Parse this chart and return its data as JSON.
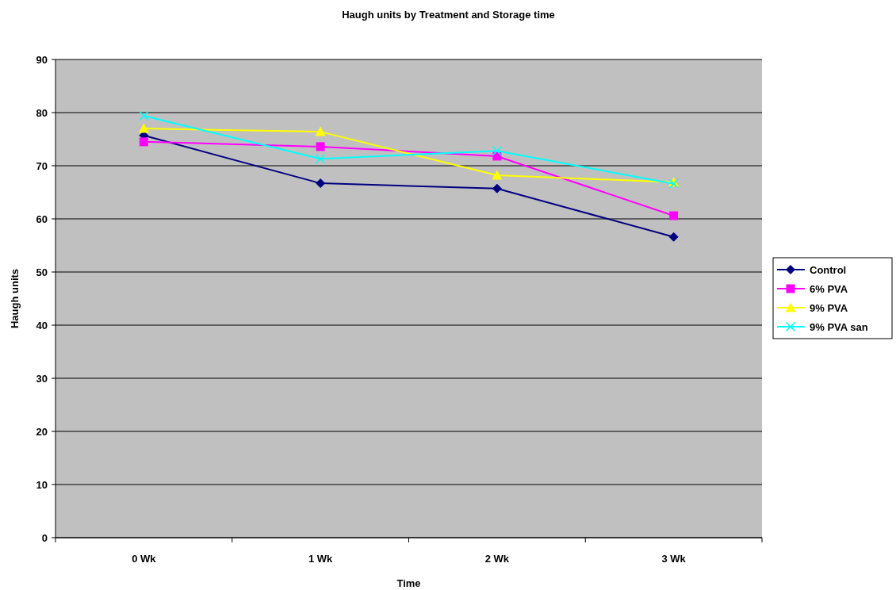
{
  "chart_data": {
    "type": "line",
    "title": "Haugh units by Treatment and Storage time",
    "xlabel": "Time",
    "ylabel": "Haugh units",
    "categories": [
      "0 Wk",
      "1 Wk",
      "2 Wk",
      "3 Wk"
    ],
    "series": [
      {
        "name": "Control",
        "color": "#000080",
        "marker": "diamond",
        "values": [
          75.7,
          66.7,
          65.7,
          56.6
        ]
      },
      {
        "name": "6% PVA",
        "color": "#ff00ff",
        "marker": "square",
        "values": [
          74.5,
          73.6,
          71.8,
          60.6
        ]
      },
      {
        "name": "9% PVA",
        "color": "#ffff00",
        "marker": "triangle",
        "values": [
          77.0,
          76.4,
          68.2,
          66.9
        ]
      },
      {
        "name": "9% PVA san",
        "color": "#00ffff",
        "marker": "cross",
        "values": [
          79.4,
          71.3,
          72.8,
          66.6
        ]
      }
    ],
    "ylim": [
      0,
      90
    ],
    "yticks": [
      0,
      10,
      20,
      30,
      40,
      50,
      60,
      70,
      80,
      90
    ],
    "grid": "y",
    "legend": "right"
  }
}
